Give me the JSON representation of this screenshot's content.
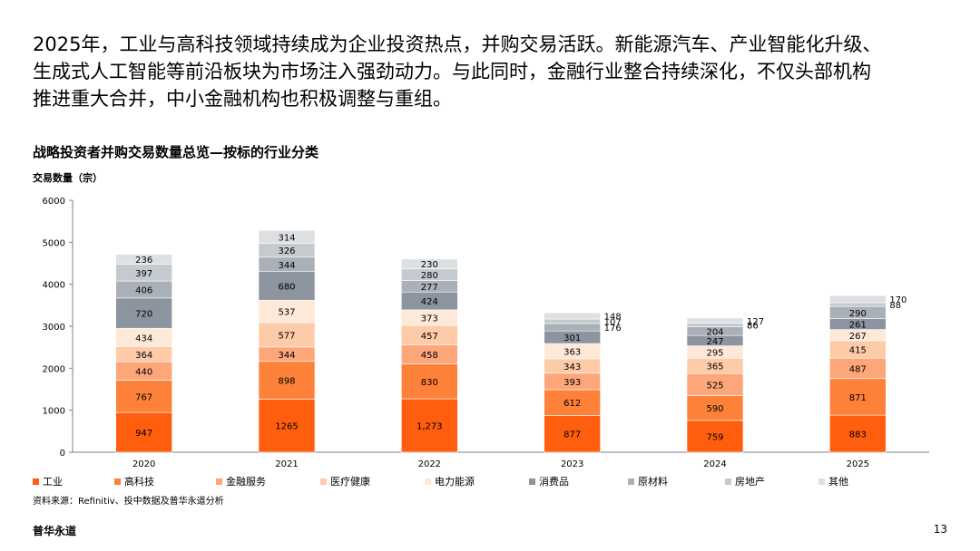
{
  "intro": {
    "lines": [
      "2025年，工业与高科技领域持续成为企业投资热点，并购交易活跃。新能源汽车、产业智能化升级、",
      "生成式人工智能等前沿板块为市场注入强劲动力。与此同时，金融行业整合持续深化，不仅头部机构",
      "推进重大合并，中小金融机构也积极调整与重组。"
    ]
  },
  "footer": {
    "source": "资料来源：Refinitiv、投中数据及普华永道分析",
    "brand": "普华永道",
    "page": "13"
  },
  "chart_data": {
    "type": "bar",
    "stacked": true,
    "title": "战略投资者并购交易数量总览—按标的行业分类",
    "ylabel": "交易数量（宗）",
    "ylim": [
      0,
      6000
    ],
    "yticks": [
      "0",
      "1000",
      "2000",
      "3000",
      "4000",
      "5000",
      "6000"
    ],
    "grid": false,
    "legend_position": "bottom",
    "categories": [
      "2020",
      "2021",
      "2022",
      "2023",
      "2024",
      "2025"
    ],
    "series": [
      {
        "name": "工业",
        "color": "#FF5E0E",
        "values": [
          947,
          1265,
          1273,
          877,
          759,
          883
        ],
        "labels": [
          "947",
          "1265",
          "1,273",
          "877",
          "759",
          "883"
        ]
      },
      {
        "name": "高科技",
        "color": "#FD8138",
        "values": [
          767,
          898,
          830,
          612,
          590,
          871
        ],
        "labels": [
          "767",
          "898",
          "830",
          "612",
          "590",
          "871"
        ]
      },
      {
        "name": "金融服务",
        "color": "#FCA67A",
        "values": [
          440,
          344,
          458,
          393,
          525,
          487
        ],
        "labels": [
          "440",
          "344",
          "458",
          "393",
          "525",
          "487"
        ]
      },
      {
        "name": "医疗健康",
        "color": "#FDCBA8",
        "values": [
          364,
          577,
          457,
          343,
          365,
          415
        ],
        "labels": [
          "364",
          "577",
          "457",
          "343",
          "365",
          "415"
        ]
      },
      {
        "name": "电力能源",
        "color": "#FEE8D8",
        "values": [
          434,
          537,
          373,
          363,
          295,
          267
        ],
        "labels": [
          "434",
          "537",
          "373",
          "363",
          "295",
          "267"
        ]
      },
      {
        "name": "消费品",
        "color": "#8B949F",
        "values": [
          720,
          680,
          424,
          301,
          247,
          261
        ],
        "labels": [
          "720",
          "680",
          "424",
          "301",
          "247",
          "261"
        ]
      },
      {
        "name": "原材料",
        "color": "#A9B0B8",
        "values": [
          406,
          344,
          277,
          176,
          204,
          290
        ],
        "labels": [
          "406",
          "344",
          "277",
          "176",
          "204",
          "290"
        ]
      },
      {
        "name": "房地产",
        "color": "#C5CACF",
        "values": [
          397,
          326,
          280,
          107,
          86,
          88
        ],
        "labels": [
          "397",
          "326",
          "280",
          "107",
          "86",
          "88"
        ]
      },
      {
        "name": "其他",
        "color": "#DDE0E3",
        "values": [
          236,
          314,
          230,
          148,
          127,
          170
        ],
        "labels": [
          "236",
          "314",
          "230",
          "148",
          "127",
          "170"
        ]
      }
    ]
  }
}
